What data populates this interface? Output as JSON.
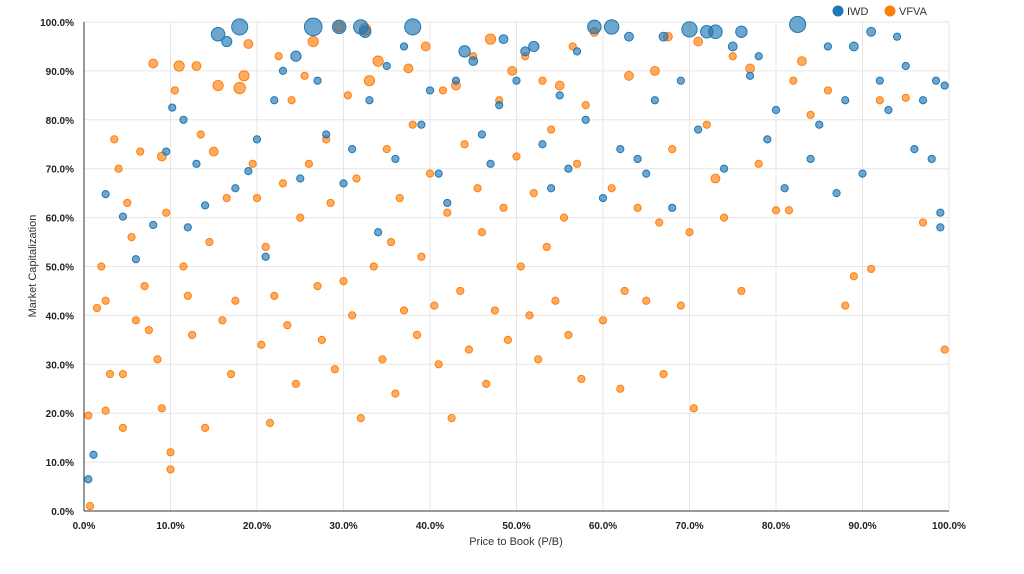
{
  "chart_data": {
    "type": "scatter",
    "xlabel": "Price to Book (P/B)",
    "ylabel": "Market Capitalization",
    "xlim": [
      0,
      100
    ],
    "ylim": [
      0,
      100
    ],
    "x_ticks": [
      "0.0%",
      "10.0%",
      "20.0%",
      "30.0%",
      "40.0%",
      "50.0%",
      "60.0%",
      "70.0%",
      "80.0%",
      "90.0%",
      "100.0%"
    ],
    "y_ticks": [
      "0.0%",
      "10.0%",
      "20.0%",
      "30.0%",
      "40.0%",
      "50.0%",
      "60.0%",
      "70.0%",
      "80.0%",
      "90.0%",
      "100.0%"
    ],
    "grid": true,
    "legend_position": "top-right",
    "series": [
      {
        "name": "IWD",
        "color": "#1f77b4",
        "note": "points: [x, y, size(1=small)]",
        "points": [
          [
            0.5,
            6.5,
            1
          ],
          [
            1.1,
            11.5,
            1
          ],
          [
            2.5,
            64.8,
            1
          ],
          [
            4.5,
            60.2,
            1
          ],
          [
            6,
            51.5,
            1
          ],
          [
            8,
            58.5,
            1
          ],
          [
            9.5,
            73.5,
            1
          ],
          [
            10.2,
            82.5,
            1
          ],
          [
            11.5,
            80,
            1
          ],
          [
            12,
            58,
            1
          ],
          [
            13,
            71,
            1
          ],
          [
            14,
            62.5,
            1
          ],
          [
            15.5,
            97.5,
            3.5
          ],
          [
            16.5,
            96,
            2
          ],
          [
            17.5,
            66,
            1
          ],
          [
            18,
            99,
            5
          ],
          [
            19,
            69.5,
            1
          ],
          [
            20,
            76,
            1
          ],
          [
            21,
            52,
            1
          ],
          [
            22,
            84,
            1
          ],
          [
            23,
            90,
            1
          ],
          [
            24.5,
            93,
            2
          ],
          [
            25,
            68,
            1
          ],
          [
            26.5,
            99,
            6
          ],
          [
            27,
            88,
            1
          ],
          [
            28,
            77,
            1
          ],
          [
            29.5,
            99,
            3.5
          ],
          [
            30,
            67,
            1
          ],
          [
            31,
            74,
            1
          ],
          [
            32,
            99,
            4
          ],
          [
            32.5,
            98,
            2.5
          ],
          [
            33,
            84,
            1
          ],
          [
            34,
            57,
            1
          ],
          [
            35,
            91,
            1
          ],
          [
            36,
            72,
            1
          ],
          [
            37,
            95,
            1
          ],
          [
            38,
            99,
            5
          ],
          [
            39,
            79,
            1
          ],
          [
            40,
            86,
            1
          ],
          [
            41,
            69,
            1
          ],
          [
            42,
            63,
            1
          ],
          [
            43,
            88,
            1
          ],
          [
            44,
            94,
            2.5
          ],
          [
            45,
            92,
            1.5
          ],
          [
            46,
            77,
            1
          ],
          [
            47,
            71,
            1
          ],
          [
            48,
            83,
            1
          ],
          [
            48.5,
            96.5,
            1.5
          ],
          [
            50,
            88,
            1
          ],
          [
            51,
            94,
            1.5
          ],
          [
            52,
            95,
            2
          ],
          [
            53,
            75,
            1
          ],
          [
            54,
            66,
            1
          ],
          [
            55,
            85,
            1
          ],
          [
            56,
            70,
            1
          ],
          [
            57,
            94,
            1
          ],
          [
            58,
            80,
            1
          ],
          [
            59,
            99,
            3.5
          ],
          [
            60,
            64,
            1
          ],
          [
            61,
            99,
            4
          ],
          [
            62,
            74,
            1
          ],
          [
            63,
            97,
            1.5
          ],
          [
            64,
            72,
            1
          ],
          [
            65,
            69,
            1
          ],
          [
            66,
            84,
            1
          ],
          [
            67,
            97,
            1.5
          ],
          [
            68,
            62,
            1
          ],
          [
            69,
            88,
            1
          ],
          [
            70,
            98.5,
            4.5
          ],
          [
            71,
            78,
            1
          ],
          [
            72,
            98,
            3
          ],
          [
            73,
            98,
            3.5
          ],
          [
            74,
            70,
            1
          ],
          [
            75,
            95,
            1.5
          ],
          [
            76,
            98,
            2.5
          ],
          [
            77,
            89,
            1
          ],
          [
            78,
            93,
            1
          ],
          [
            79,
            76,
            1
          ],
          [
            80,
            82,
            1
          ],
          [
            81,
            66,
            1
          ],
          [
            82.5,
            99.5,
            5
          ],
          [
            84,
            72,
            1
          ],
          [
            85,
            79,
            1
          ],
          [
            86,
            95,
            1
          ],
          [
            87,
            65,
            1
          ],
          [
            88,
            84,
            1
          ],
          [
            89,
            95,
            1.5
          ],
          [
            90,
            69,
            1
          ],
          [
            91,
            98,
            1.5
          ],
          [
            92,
            88,
            1
          ],
          [
            93,
            82,
            1
          ],
          [
            94,
            97,
            1
          ],
          [
            95,
            91,
            1
          ],
          [
            96,
            74,
            1
          ],
          [
            97,
            84,
            1
          ],
          [
            98,
            72,
            1
          ],
          [
            98.5,
            88,
            1
          ],
          [
            99,
            61,
            1
          ],
          [
            99.5,
            87,
            1
          ],
          [
            99,
            58,
            1
          ]
        ]
      },
      {
        "name": "VFVA",
        "color": "#ff7f0e",
        "note": "points: [x, y, size(1=small)]",
        "points": [
          [
            0.5,
            19.5,
            1
          ],
          [
            0.7,
            1,
            1
          ],
          [
            1.5,
            41.5,
            1
          ],
          [
            2,
            50,
            1
          ],
          [
            2.5,
            20.5,
            1
          ],
          [
            2.5,
            43,
            1
          ],
          [
            3,
            28,
            1
          ],
          [
            3.5,
            76,
            1
          ],
          [
            4,
            70,
            1
          ],
          [
            4.5,
            17,
            1
          ],
          [
            4.5,
            28,
            1
          ],
          [
            5,
            63,
            1
          ],
          [
            5.5,
            56,
            1
          ],
          [
            6,
            39,
            1
          ],
          [
            6.5,
            73.5,
            1
          ],
          [
            7,
            46,
            1
          ],
          [
            7.5,
            37,
            1
          ],
          [
            8,
            91.5,
            1.5
          ],
          [
            8.5,
            31,
            1
          ],
          [
            9,
            72.5,
            1.5
          ],
          [
            9,
            21,
            1
          ],
          [
            9.5,
            61,
            1
          ],
          [
            10,
            12,
            1
          ],
          [
            10,
            8.5,
            1
          ],
          [
            10.5,
            86,
            1
          ],
          [
            11,
            91,
            2
          ],
          [
            11.5,
            50,
            1
          ],
          [
            12,
            44,
            1
          ],
          [
            12.5,
            36,
            1
          ],
          [
            13,
            91,
            1.5
          ],
          [
            13.5,
            77,
            1
          ],
          [
            14,
            17,
            1
          ],
          [
            14.5,
            55,
            1
          ],
          [
            15,
            73.5,
            1.5
          ],
          [
            15.5,
            87,
            2
          ],
          [
            16,
            39,
            1
          ],
          [
            16.5,
            64,
            1
          ],
          [
            17,
            28,
            1
          ],
          [
            17.5,
            43,
            1
          ],
          [
            18,
            86.5,
            2.5
          ],
          [
            18.5,
            89,
            2
          ],
          [
            19,
            95.5,
            1.5
          ],
          [
            19.5,
            71,
            1
          ],
          [
            20,
            64,
            1
          ],
          [
            20.5,
            34,
            1
          ],
          [
            21,
            54,
            1
          ],
          [
            21.5,
            18,
            1
          ],
          [
            22,
            44,
            1
          ],
          [
            22.5,
            93,
            1
          ],
          [
            23,
            67,
            1
          ],
          [
            23.5,
            38,
            1
          ],
          [
            24,
            84,
            1
          ],
          [
            24.5,
            26,
            1
          ],
          [
            25,
            60,
            1
          ],
          [
            25.5,
            89,
            1
          ],
          [
            26,
            71,
            1
          ],
          [
            26.5,
            96,
            2
          ],
          [
            27,
            46,
            1
          ],
          [
            27.5,
            35,
            1
          ],
          [
            28,
            76,
            1
          ],
          [
            28.5,
            63,
            1
          ],
          [
            29,
            29,
            1
          ],
          [
            29.5,
            99,
            2
          ],
          [
            30,
            47,
            1
          ],
          [
            30.5,
            85,
            1
          ],
          [
            31,
            40,
            1
          ],
          [
            31.5,
            68,
            1
          ],
          [
            32,
            19,
            1
          ],
          [
            32.5,
            98.5,
            2.5
          ],
          [
            33,
            88,
            2
          ],
          [
            33.5,
            50,
            1
          ],
          [
            34,
            92,
            2
          ],
          [
            34.5,
            31,
            1
          ],
          [
            35,
            74,
            1
          ],
          [
            35.5,
            55,
            1
          ],
          [
            36,
            24,
            1
          ],
          [
            36.5,
            64,
            1
          ],
          [
            37,
            41,
            1
          ],
          [
            37.5,
            90.5,
            1.5
          ],
          [
            38,
            79,
            1
          ],
          [
            38.5,
            36,
            1
          ],
          [
            39,
            52,
            1
          ],
          [
            39.5,
            95,
            1.5
          ],
          [
            40,
            69,
            1
          ],
          [
            40.5,
            42,
            1
          ],
          [
            41,
            30,
            1
          ],
          [
            41.5,
            86,
            1
          ],
          [
            42,
            61,
            1
          ],
          [
            42.5,
            19,
            1
          ],
          [
            43,
            87,
            1.5
          ],
          [
            43.5,
            45,
            1
          ],
          [
            44,
            75,
            1
          ],
          [
            44.5,
            33,
            1
          ],
          [
            45,
            93,
            1
          ],
          [
            45.5,
            66,
            1
          ],
          [
            46,
            57,
            1
          ],
          [
            46.5,
            26,
            1
          ],
          [
            47,
            96.5,
            2
          ],
          [
            47.5,
            41,
            1
          ],
          [
            48,
            84,
            1
          ],
          [
            48.5,
            62,
            1
          ],
          [
            49,
            35,
            1
          ],
          [
            49.5,
            90,
            1.5
          ],
          [
            50,
            72.5,
            1
          ],
          [
            50.5,
            50,
            1
          ],
          [
            51,
            93,
            1
          ],
          [
            51.5,
            40,
            1
          ],
          [
            52,
            65,
            1
          ],
          [
            52.5,
            31,
            1
          ],
          [
            53,
            88,
            1
          ],
          [
            53.5,
            54,
            1
          ],
          [
            54,
            78,
            1
          ],
          [
            54.5,
            43,
            1
          ],
          [
            55,
            87,
            1.5
          ],
          [
            55.5,
            60,
            1
          ],
          [
            56,
            36,
            1
          ],
          [
            56.5,
            95,
            1
          ],
          [
            57,
            71,
            1
          ],
          [
            57.5,
            27,
            1
          ],
          [
            58,
            83,
            1
          ],
          [
            59,
            98,
            1.5
          ],
          [
            60,
            39,
            1
          ],
          [
            61,
            66,
            1
          ],
          [
            62,
            25,
            1
          ],
          [
            62.5,
            45,
            1
          ],
          [
            63,
            89,
            1.5
          ],
          [
            64,
            62,
            1
          ],
          [
            65,
            43,
            1
          ],
          [
            66,
            90,
            1.5
          ],
          [
            66.5,
            59,
            1
          ],
          [
            67,
            28,
            1
          ],
          [
            67.5,
            97,
            1.5
          ],
          [
            68,
            74,
            1
          ],
          [
            69,
            42,
            1
          ],
          [
            70,
            57,
            1
          ],
          [
            70.5,
            21,
            1
          ],
          [
            71,
            96,
            1.5
          ],
          [
            72,
            79,
            1
          ],
          [
            73,
            68,
            1.5
          ],
          [
            74,
            60,
            1
          ],
          [
            75,
            93,
            1
          ],
          [
            76,
            45,
            1
          ],
          [
            77,
            90.5,
            1.5
          ],
          [
            78,
            71,
            1
          ],
          [
            80,
            61.5,
            1
          ],
          [
            81.5,
            61.5,
            1
          ],
          [
            82,
            88,
            1
          ],
          [
            83,
            92,
            1.5
          ],
          [
            84,
            81,
            1
          ],
          [
            86,
            86,
            1
          ],
          [
            88,
            42,
            1
          ],
          [
            89,
            48,
            1
          ],
          [
            91,
            49.5,
            1
          ],
          [
            92,
            84,
            1
          ],
          [
            95,
            84.5,
            1
          ],
          [
            97,
            59,
            1
          ],
          [
            99.5,
            33,
            1
          ]
        ]
      }
    ]
  }
}
